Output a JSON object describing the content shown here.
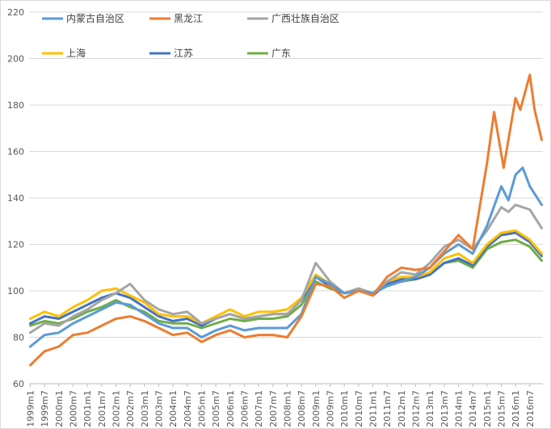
{
  "chart_data": {
    "type": "line",
    "title": "",
    "xlabel": "",
    "ylabel": "",
    "ylim": [
      60,
      220
    ],
    "yticks": [
      60,
      80,
      100,
      120,
      140,
      160,
      180,
      200,
      220
    ],
    "grid": "horizontal",
    "legend": "top",
    "x_tick_labels": [
      "1999m1",
      "1999m7",
      "2000m1",
      "2000m7",
      "2001m1",
      "2001m7",
      "2002m1",
      "2002m7",
      "2003m1",
      "2003m7",
      "2004m1",
      "2004m7",
      "2005m1",
      "2005m7",
      "2006m1",
      "2006m7",
      "2007m1",
      "2007m7",
      "2008m1",
      "2008m7",
      "2009m1",
      "2009m7",
      "2010m1",
      "2010m7",
      "2011m1",
      "2011m7",
      "2012m1",
      "2012m7",
      "2013m1",
      "2013m7",
      "2014m1",
      "2014m7",
      "2015m1",
      "2015m7",
      "2016m1",
      "2016m7"
    ],
    "x_start": "1999m1",
    "x_end": "2016m12",
    "series": [
      {
        "name": "内蒙古自治区",
        "color": "#5B9BD5",
        "points": [
          [
            "1999m1",
            76
          ],
          [
            "1999m7",
            81
          ],
          [
            "2000m1",
            82
          ],
          [
            "2000m7",
            86
          ],
          [
            "2001m1",
            89
          ],
          [
            "2001m7",
            92
          ],
          [
            "2002m1",
            95
          ],
          [
            "2002m7",
            94
          ],
          [
            "2003m1",
            90
          ],
          [
            "2003m7",
            86
          ],
          [
            "2004m1",
            84
          ],
          [
            "2004m7",
            84
          ],
          [
            "2005m1",
            80
          ],
          [
            "2005m7",
            83
          ],
          [
            "2006m1",
            85
          ],
          [
            "2006m7",
            83
          ],
          [
            "2007m1",
            84
          ],
          [
            "2007m7",
            84
          ],
          [
            "2008m1",
            84
          ],
          [
            "2008m7",
            90
          ],
          [
            "2009m1",
            106
          ],
          [
            "2009m7",
            103
          ],
          [
            "2010m1",
            99
          ],
          [
            "2010m7",
            100
          ],
          [
            "2011m1",
            99
          ],
          [
            "2011m7",
            102
          ],
          [
            "2012m1",
            104
          ],
          [
            "2012m7",
            106
          ],
          [
            "2013m1",
            110
          ],
          [
            "2013m7",
            116
          ],
          [
            "2014m1",
            120
          ],
          [
            "2014m7",
            116
          ],
          [
            "2015m1",
            128
          ],
          [
            "2015m7",
            145
          ],
          [
            "2015m10",
            139
          ],
          [
            "2016m1",
            150
          ],
          [
            "2016m4",
            153
          ],
          [
            "2016m7",
            145
          ],
          [
            "2016m12",
            137
          ]
        ]
      },
      {
        "name": "黑龙江",
        "color": "#ED7D31",
        "points": [
          [
            "1999m1",
            68
          ],
          [
            "1999m7",
            74
          ],
          [
            "2000m1",
            76
          ],
          [
            "2000m7",
            81
          ],
          [
            "2001m1",
            82
          ],
          [
            "2001m7",
            85
          ],
          [
            "2002m1",
            88
          ],
          [
            "2002m7",
            89
          ],
          [
            "2003m1",
            87
          ],
          [
            "2003m7",
            84
          ],
          [
            "2004m1",
            81
          ],
          [
            "2004m7",
            82
          ],
          [
            "2005m1",
            78
          ],
          [
            "2005m7",
            81
          ],
          [
            "2006m1",
            83
          ],
          [
            "2006m7",
            80
          ],
          [
            "2007m1",
            81
          ],
          [
            "2007m7",
            81
          ],
          [
            "2008m1",
            80
          ],
          [
            "2008m7",
            89
          ],
          [
            "2009m1",
            103
          ],
          [
            "2009m7",
            102
          ],
          [
            "2010m1",
            97
          ],
          [
            "2010m7",
            100
          ],
          [
            "2011m1",
            98
          ],
          [
            "2011m7",
            106
          ],
          [
            "2012m1",
            110
          ],
          [
            "2012m7",
            109
          ],
          [
            "2013m1",
            110
          ],
          [
            "2013m7",
            117
          ],
          [
            "2014m1",
            124
          ],
          [
            "2014m7",
            118
          ],
          [
            "2015m1",
            155
          ],
          [
            "2015m4",
            177
          ],
          [
            "2015m8",
            153
          ],
          [
            "2016m1",
            183
          ],
          [
            "2016m3",
            178
          ],
          [
            "2016m7",
            193
          ],
          [
            "2016m9",
            178
          ],
          [
            "2016m12",
            165
          ]
        ]
      },
      {
        "name": "广西壮族自治区",
        "color": "#A5A5A5",
        "points": [
          [
            "1999m1",
            82
          ],
          [
            "1999m7",
            86
          ],
          [
            "2000m1",
            85
          ],
          [
            "2000m7",
            89
          ],
          [
            "2001m1",
            92
          ],
          [
            "2001m7",
            96
          ],
          [
            "2002m1",
            99
          ],
          [
            "2002m7",
            103
          ],
          [
            "2003m1",
            96
          ],
          [
            "2003m7",
            92
          ],
          [
            "2004m1",
            90
          ],
          [
            "2004m7",
            91
          ],
          [
            "2005m1",
            86
          ],
          [
            "2005m7",
            88
          ],
          [
            "2006m1",
            90
          ],
          [
            "2006m7",
            88
          ],
          [
            "2007m1",
            89
          ],
          [
            "2007m7",
            90
          ],
          [
            "2008m1",
            90
          ],
          [
            "2008m7",
            96
          ],
          [
            "2009m1",
            112
          ],
          [
            "2009m7",
            104
          ],
          [
            "2010m1",
            99
          ],
          [
            "2010m7",
            101
          ],
          [
            "2011m1",
            99
          ],
          [
            "2011m7",
            104
          ],
          [
            "2012m1",
            108
          ],
          [
            "2012m7",
            107
          ],
          [
            "2013m1",
            112
          ],
          [
            "2013m7",
            119
          ],
          [
            "2014m1",
            122
          ],
          [
            "2014m7",
            118
          ],
          [
            "2015m1",
            126
          ],
          [
            "2015m7",
            136
          ],
          [
            "2015m10",
            134
          ],
          [
            "2016m1",
            137
          ],
          [
            "2016m7",
            135
          ],
          [
            "2016m12",
            127
          ]
        ]
      },
      {
        "name": "上海",
        "color": "#FFC000",
        "points": [
          [
            "1999m1",
            88
          ],
          [
            "1999m7",
            91
          ],
          [
            "2000m1",
            89
          ],
          [
            "2000m7",
            93
          ],
          [
            "2001m1",
            96
          ],
          [
            "2001m7",
            100
          ],
          [
            "2002m1",
            101
          ],
          [
            "2002m7",
            98
          ],
          [
            "2003m1",
            95
          ],
          [
            "2003m7",
            90
          ],
          [
            "2004m1",
            89
          ],
          [
            "2004m7",
            89
          ],
          [
            "2005m1",
            86
          ],
          [
            "2005m7",
            89
          ],
          [
            "2006m1",
            92
          ],
          [
            "2006m7",
            89
          ],
          [
            "2007m1",
            91
          ],
          [
            "2007m7",
            91
          ],
          [
            "2008m1",
            92
          ],
          [
            "2008m7",
            97
          ],
          [
            "2009m1",
            107
          ],
          [
            "2009m7",
            103
          ],
          [
            "2010m1",
            99
          ],
          [
            "2010m7",
            101
          ],
          [
            "2011m1",
            99
          ],
          [
            "2011m7",
            104
          ],
          [
            "2012m1",
            106
          ],
          [
            "2012m7",
            106
          ],
          [
            "2013m1",
            108
          ],
          [
            "2013m7",
            114
          ],
          [
            "2014m1",
            116
          ],
          [
            "2014m7",
            112
          ],
          [
            "2015m1",
            120
          ],
          [
            "2015m7",
            125
          ],
          [
            "2016m1",
            126
          ],
          [
            "2016m7",
            122
          ],
          [
            "2016m12",
            116
          ]
        ]
      },
      {
        "name": "江苏",
        "color": "#4472C4",
        "points": [
          [
            "1999m1",
            86
          ],
          [
            "1999m7",
            89
          ],
          [
            "2000m1",
            88
          ],
          [
            "2000m7",
            91
          ],
          [
            "2001m1",
            94
          ],
          [
            "2001m7",
            97
          ],
          [
            "2002m1",
            99
          ],
          [
            "2002m7",
            97
          ],
          [
            "2003m1",
            93
          ],
          [
            "2003m7",
            89
          ],
          [
            "2004m1",
            87
          ],
          [
            "2004m7",
            88
          ],
          [
            "2005m1",
            85
          ],
          [
            "2005m7",
            88
          ],
          [
            "2006m1",
            90
          ],
          [
            "2006m7",
            88
          ],
          [
            "2007m1",
            89
          ],
          [
            "2007m7",
            90
          ],
          [
            "2008m1",
            90
          ],
          [
            "2008m7",
            96
          ],
          [
            "2009m1",
            106
          ],
          [
            "2009m7",
            102
          ],
          [
            "2010m1",
            99
          ],
          [
            "2010m7",
            101
          ],
          [
            "2011m1",
            98
          ],
          [
            "2011m7",
            103
          ],
          [
            "2012m1",
            105
          ],
          [
            "2012m7",
            105
          ],
          [
            "2013m1",
            107
          ],
          [
            "2013m7",
            112
          ],
          [
            "2014m1",
            114
          ],
          [
            "2014m7",
            111
          ],
          [
            "2015m1",
            119
          ],
          [
            "2015m7",
            124
          ],
          [
            "2016m1",
            125
          ],
          [
            "2016m7",
            121
          ],
          [
            "2016m12",
            115
          ]
        ]
      },
      {
        "name": "广东",
        "color": "#70AD47",
        "points": [
          [
            "1999m1",
            85
          ],
          [
            "1999m7",
            87
          ],
          [
            "2000m1",
            86
          ],
          [
            "2000m7",
            88
          ],
          [
            "2001m1",
            91
          ],
          [
            "2001m7",
            93
          ],
          [
            "2002m1",
            96
          ],
          [
            "2002m7",
            93
          ],
          [
            "2003m1",
            91
          ],
          [
            "2003m7",
            87
          ],
          [
            "2004m1",
            86
          ],
          [
            "2004m7",
            86
          ],
          [
            "2005m1",
            84
          ],
          [
            "2005m7",
            86
          ],
          [
            "2006m1",
            88
          ],
          [
            "2006m7",
            87
          ],
          [
            "2007m1",
            88
          ],
          [
            "2007m7",
            88
          ],
          [
            "2008m1",
            89
          ],
          [
            "2008m7",
            94
          ],
          [
            "2009m1",
            104
          ],
          [
            "2009m7",
            101
          ],
          [
            "2010m1",
            99
          ],
          [
            "2010m7",
            100
          ],
          [
            "2011m1",
            99
          ],
          [
            "2011m7",
            103
          ],
          [
            "2012m1",
            104
          ],
          [
            "2012m7",
            105
          ],
          [
            "2013m1",
            107
          ],
          [
            "2013m7",
            112
          ],
          [
            "2014m1",
            113
          ],
          [
            "2014m7",
            110
          ],
          [
            "2015m1",
            118
          ],
          [
            "2015m7",
            121
          ],
          [
            "2016m1",
            122
          ],
          [
            "2016m7",
            119
          ],
          [
            "2016m12",
            113
          ]
        ]
      }
    ]
  }
}
